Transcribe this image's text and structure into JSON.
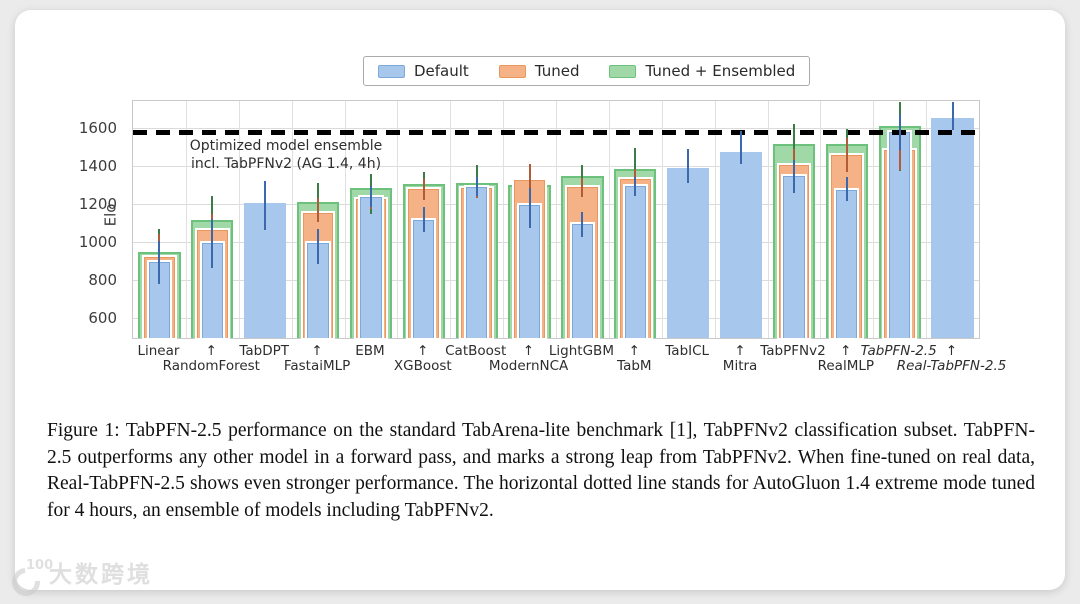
{
  "page": {
    "watermark": {
      "logo_number": "100",
      "text": "大数跨境"
    }
  },
  "colors": {
    "card_background": "#ffffff",
    "page_background": "#ebebeb",
    "default_fill": "#a8c7ec",
    "default_edge": "#7fa8da",
    "default_err": "#3c68ae",
    "tuned_fill": "#f5b286",
    "tuned_edge": "#e9975c",
    "tuned_err": "#b05c3a",
    "ensembled_fill": "#a0d8a8",
    "ensembled_edge": "#6cc27c",
    "ensembled_err": "#3c7d46",
    "dashed": "#000000",
    "cite": "#2fd32f"
  },
  "legend": {
    "items": [
      {
        "key": "default",
        "label": "Default"
      },
      {
        "key": "tuned",
        "label": "Tuned"
      },
      {
        "key": "ensembled",
        "label": "Tuned + Ensembled"
      }
    ]
  },
  "chart_data": {
    "type": "bar",
    "title": "",
    "xlabel": "",
    "ylabel": "Elo",
    "ylim": [
      500,
      1750
    ],
    "yticks": [
      600,
      800,
      1000,
      1200,
      1400,
      1600
    ],
    "grid": "horizontal gridlines at yticks plus vertical group separators",
    "legend_position": "top-center above plot",
    "dashed_line": {
      "value": 1580,
      "label_line1": "Optimized model ensemble",
      "label_line2": "incl. TabPFNv2 (AG 1.4, 4h)"
    },
    "categories": [
      "Linear",
      "RandomForest",
      "TabDPT",
      "FastaiMLP",
      "EBM",
      "XGBoost",
      "CatBoost",
      "ModernNCA",
      "LightGBM",
      "TabM",
      "TabICL",
      "Mitra",
      "TabPFNv2",
      "RealMLP",
      "TabPFN-2.5",
      "Real-TabPFN-2.5"
    ],
    "italic_categories": [
      "TabPFN-2.5",
      "Real-TabPFN-2.5"
    ],
    "series": [
      {
        "name": "Default",
        "values": [
          900,
          1000,
          1210,
          1000,
          1245,
          1125,
          1298,
          1200,
          1100,
          1300,
          1398,
          1483,
          1353,
          1280,
          1585,
          1660
        ],
        "err_lo": [
          785,
          870,
          1070,
          890,
          1190,
          1060,
          1250,
          1080,
          1035,
          1250,
          1315,
          1420,
          1265,
          1225,
          1490,
          1598
        ],
        "err_hi": [
          1010,
          1130,
          1330,
          1075,
          1300,
          1190,
          1350,
          1290,
          1165,
          1350,
          1495,
          1590,
          1440,
          1350,
          1680,
          1745
        ]
      },
      {
        "name": "Tuned",
        "values": [
          925,
          1070,
          null,
          1160,
          1235,
          1285,
          1290,
          1335,
          1295,
          1340,
          null,
          null,
          1413,
          1465,
          1492,
          null
        ],
        "err_lo": [
          795,
          990,
          null,
          1110,
          1180,
          1230,
          1240,
          1250,
          1245,
          1290,
          null,
          null,
          1330,
          1375,
          1385,
          null
        ],
        "err_hi": [
          1050,
          1155,
          null,
          1240,
          1290,
          1340,
          1345,
          1420,
          1345,
          1390,
          null,
          null,
          1495,
          1555,
          1580,
          null
        ]
      },
      {
        "name": "Tuned + Ensembled",
        "values": [
          955,
          1125,
          null,
          1220,
          1290,
          1310,
          1320,
          1305,
          1355,
          1390,
          null,
          null,
          1523,
          1525,
          1620,
          null
        ],
        "err_lo": [
          850,
          1005,
          null,
          1120,
          1155,
          1240,
          1250,
          1245,
          1250,
          1270,
          null,
          null,
          1415,
          1445,
          1383,
          null
        ],
        "err_hi": [
          1075,
          1250,
          null,
          1320,
          1365,
          1375,
          1410,
          1365,
          1410,
          1500,
          null,
          null,
          1628,
          1600,
          1745,
          null
        ]
      }
    ]
  },
  "caption": {
    "part1": "Figure 1:  TabPFN-2.5 performance on the standard TabArena-lite benchmark ",
    "cite": "[1]",
    "part2": ", TabPFNv2 classification subset.  TabPFN-2.5 outperforms any other model in a forward pass, and marks a strong leap from TabPFNv2.  When fine-tuned on real data, Real-TabPFN-2.5 shows even stronger performance.  The horizontal dotted line stands for AutoGluon 1.4 extreme mode tuned for 4 hours, an ensemble of models including TabPFNv2."
  }
}
